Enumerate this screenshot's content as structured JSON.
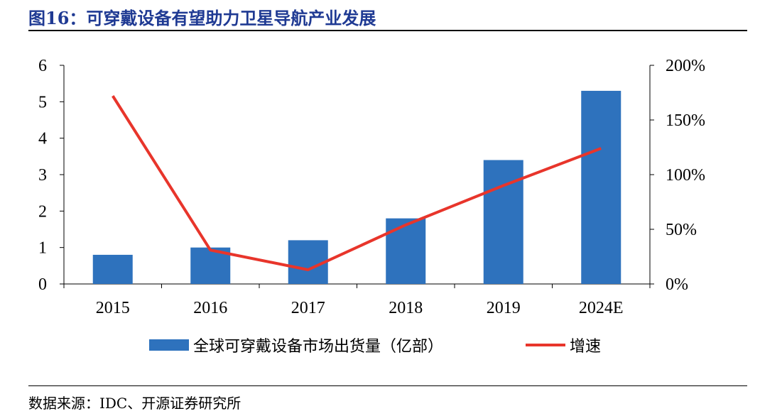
{
  "title": "图16：可穿戴设备有望助力卫星导航产业发展",
  "source": "数据来源：IDC、开源证券研究所",
  "chart_data": {
    "type": "bar",
    "categories": [
      "2015",
      "2016",
      "2017",
      "2018",
      "2019",
      "2024E"
    ],
    "series": [
      {
        "name": "全球可穿戴设备市场出货量（亿部）",
        "type": "bar",
        "axis": "left",
        "color": "#2e72bd",
        "values": [
          0.8,
          1.0,
          1.2,
          1.8,
          3.4,
          5.3
        ]
      },
      {
        "name": "增速",
        "type": "line",
        "axis": "right",
        "color": "#e8352b",
        "values": [
          172,
          31,
          13,
          54,
          90,
          124
        ]
      }
    ],
    "ylim_left": [
      0,
      6
    ],
    "yticks_left": [
      "0",
      "1",
      "2",
      "3",
      "4",
      "5",
      "6"
    ],
    "ylim_right": [
      0,
      200
    ],
    "yticks_right": [
      "0%",
      "50%",
      "100%",
      "150%",
      "200%"
    ],
    "grid": false,
    "legend_position": "bottom"
  }
}
